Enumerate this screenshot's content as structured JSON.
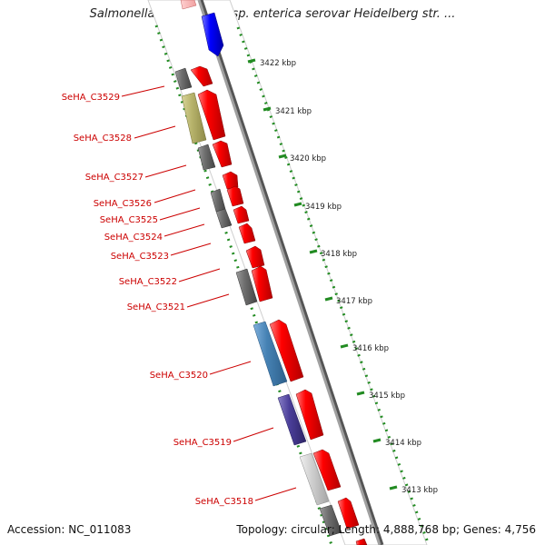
{
  "header": {
    "title": "Salmonella enterica subsp. enterica serovar Heidelberg str. ..."
  },
  "footer": {
    "accession": "Accession: NC_011083",
    "summary": "Topology: circular; Length: 4,888,768 bp; Genes: 4,756"
  },
  "colors": {
    "forward_strand": "#ff0000",
    "top_strand": "#0000ff",
    "backbone": "#808080",
    "tick_dotted": "#228b22",
    "label": "#cc0000"
  },
  "kbp_ticks": [
    "3422 kbp",
    "3421 kbp",
    "3420 kbp",
    "3419 kbp",
    "3418 kbp",
    "3417 kbp",
    "3416 kbp",
    "3415 kbp",
    "3414 kbp",
    "3413 kbp"
  ],
  "gene_labels": [
    {
      "id": "3529",
      "text": "SeHA_C3529"
    },
    {
      "id": "3528",
      "text": "SeHA_C3528"
    },
    {
      "id": "3527",
      "text": "SeHA_C3527"
    },
    {
      "id": "3526",
      "text": "SeHA_C3526"
    },
    {
      "id": "3525",
      "text": "SeHA_C3525"
    },
    {
      "id": "3524",
      "text": "SeHA_C3524"
    },
    {
      "id": "3523",
      "text": "SeHA_C3523"
    },
    {
      "id": "3522",
      "text": "SeHA_C3522"
    },
    {
      "id": "3521",
      "text": "SeHA_C3521"
    },
    {
      "id": "3520",
      "text": "SeHA_C3520"
    },
    {
      "id": "3519",
      "text": "SeHA_C3519"
    },
    {
      "id": "3518",
      "text": "SeHA_C3518"
    }
  ]
}
